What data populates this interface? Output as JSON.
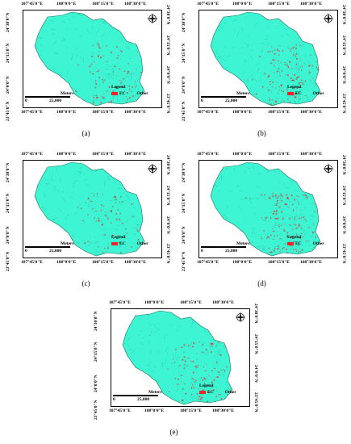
{
  "axes": {
    "lon_ticks": [
      "107°45'0\"E",
      "108°0'0\"E",
      "108°15'0\"E",
      "108°30'0\"E"
    ],
    "lat_ticks": [
      "24°30'0\"N",
      "24°15'0\"N",
      "24°0'0\"N",
      "23°45'0\"N"
    ]
  },
  "legend": {
    "title": "Legend",
    "items": [
      {
        "label": "EC",
        "color": "#e8262a"
      },
      {
        "label": "Other",
        "color": "#3df5d2"
      }
    ]
  },
  "scale_bar": {
    "unit": "Meters",
    "start": "0",
    "distance": "25,000"
  },
  "colors": {
    "land": "#3df5d2",
    "ec": "#e8262a",
    "texture": "#2a8f7c"
  },
  "panels": [
    {
      "caption": "(a)"
    },
    {
      "caption": "(b)"
    },
    {
      "caption": "(c)"
    },
    {
      "caption": "(d)"
    },
    {
      "caption": "(e)"
    }
  ]
}
